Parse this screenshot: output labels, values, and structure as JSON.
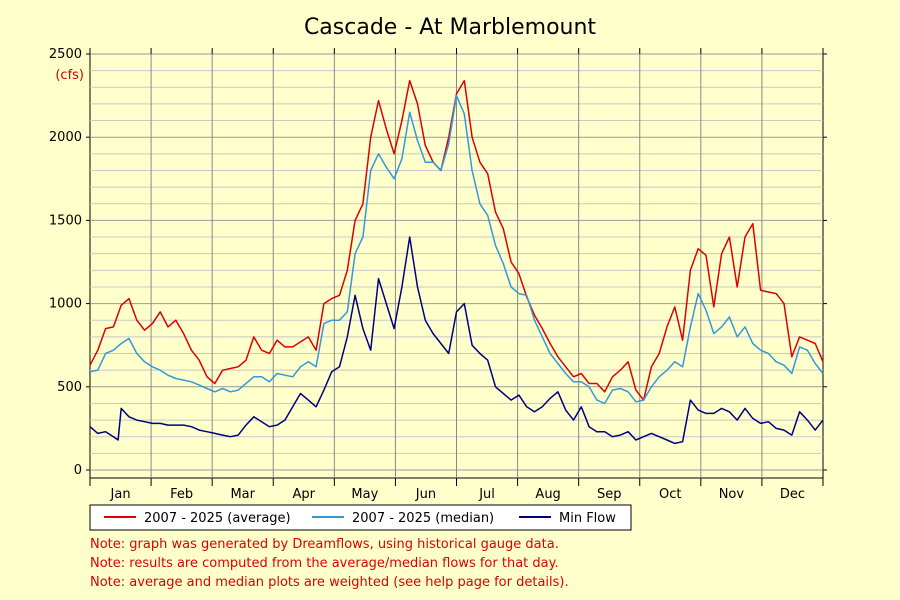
{
  "chart_data": {
    "type": "line",
    "title": "Cascade - At Marblemount",
    "y_unit": "(cfs)",
    "ylim": [
      0,
      2500
    ],
    "y_ticks": [
      0,
      500,
      1000,
      1500,
      2000,
      2500
    ],
    "x_ticks": [
      "Jan",
      "Feb",
      "Mar",
      "Apr",
      "May",
      "Jun",
      "Jul",
      "Aug",
      "Sep",
      "Oct",
      "Nov",
      "Dec"
    ],
    "xlim_days": [
      0,
      365
    ],
    "grid": true,
    "legend_placement": "bottom",
    "series": [
      {
        "name": "2007 - 2025 (average)",
        "color": "#dd0000",
        "points": [
          [
            0,
            630
          ],
          [
            5,
            720
          ],
          [
            10,
            850
          ],
          [
            15,
            860
          ],
          [
            20,
            990
          ],
          [
            25,
            1030
          ],
          [
            30,
            900
          ],
          [
            35,
            840
          ],
          [
            40,
            880
          ],
          [
            45,
            950
          ],
          [
            50,
            860
          ],
          [
            55,
            900
          ],
          [
            60,
            820
          ],
          [
            65,
            720
          ],
          [
            70,
            660
          ],
          [
            75,
            560
          ],
          [
            80,
            520
          ],
          [
            85,
            600
          ],
          [
            90,
            610
          ],
          [
            95,
            620
          ],
          [
            100,
            660
          ],
          [
            105,
            800
          ],
          [
            110,
            720
          ],
          [
            115,
            700
          ],
          [
            120,
            780
          ],
          [
            125,
            740
          ],
          [
            130,
            740
          ],
          [
            135,
            770
          ],
          [
            140,
            800
          ],
          [
            145,
            720
          ],
          [
            150,
            1000
          ],
          [
            155,
            1030
          ],
          [
            160,
            1050
          ],
          [
            165,
            1200
          ],
          [
            170,
            1500
          ],
          [
            175,
            1600
          ],
          [
            180,
            2000
          ],
          [
            185,
            2220
          ],
          [
            190,
            2050
          ],
          [
            195,
            1900
          ],
          [
            200,
            2100
          ],
          [
            205,
            2340
          ],
          [
            210,
            2200
          ],
          [
            215,
            1950
          ],
          [
            220,
            1850
          ],
          [
            225,
            1800
          ],
          [
            230,
            2000
          ],
          [
            235,
            2260
          ],
          [
            240,
            2340
          ],
          [
            245,
            2000
          ],
          [
            250,
            1850
          ],
          [
            255,
            1780
          ],
          [
            260,
            1550
          ],
          [
            265,
            1450
          ],
          [
            270,
            1250
          ],
          [
            275,
            1180
          ],
          [
            280,
            1040
          ],
          [
            285,
            930
          ],
          [
            290,
            850
          ],
          [
            295,
            760
          ],
          [
            300,
            680
          ],
          [
            305,
            620
          ],
          [
            310,
            560
          ],
          [
            315,
            580
          ],
          [
            320,
            520
          ],
          [
            325,
            520
          ],
          [
            330,
            470
          ],
          [
            335,
            560
          ],
          [
            340,
            600
          ],
          [
            345,
            650
          ],
          [
            350,
            480
          ],
          [
            355,
            420
          ],
          [
            360,
            620
          ],
          [
            365,
            700
          ],
          [
            370,
            860
          ],
          [
            375,
            980
          ],
          [
            380,
            780
          ],
          [
            385,
            1200
          ],
          [
            390,
            1330
          ],
          [
            395,
            1290
          ],
          [
            400,
            980
          ],
          [
            405,
            1300
          ],
          [
            410,
            1400
          ],
          [
            415,
            1100
          ],
          [
            420,
            1400
          ],
          [
            425,
            1480
          ],
          [
            430,
            1080
          ],
          [
            435,
            1070
          ],
          [
            440,
            1060
          ],
          [
            445,
            1000
          ],
          [
            450,
            680
          ],
          [
            455,
            800
          ],
          [
            460,
            780
          ],
          [
            465,
            760
          ],
          [
            470,
            650
          ]
        ]
      },
      {
        "name": "2007 - 2025 (median)",
        "color": "#3399dd",
        "points": [
          [
            0,
            590
          ],
          [
            5,
            600
          ],
          [
            10,
            700
          ],
          [
            15,
            720
          ],
          [
            20,
            760
          ],
          [
            25,
            790
          ],
          [
            30,
            700
          ],
          [
            35,
            650
          ],
          [
            40,
            620
          ],
          [
            45,
            600
          ],
          [
            50,
            570
          ],
          [
            55,
            550
          ],
          [
            60,
            540
          ],
          [
            65,
            530
          ],
          [
            70,
            510
          ],
          [
            75,
            490
          ],
          [
            80,
            470
          ],
          [
            85,
            490
          ],
          [
            90,
            470
          ],
          [
            95,
            480
          ],
          [
            100,
            520
          ],
          [
            105,
            560
          ],
          [
            110,
            560
          ],
          [
            115,
            530
          ],
          [
            120,
            580
          ],
          [
            125,
            570
          ],
          [
            130,
            560
          ],
          [
            135,
            620
          ],
          [
            140,
            650
          ],
          [
            145,
            620
          ],
          [
            150,
            880
          ],
          [
            155,
            900
          ],
          [
            160,
            900
          ],
          [
            165,
            950
          ],
          [
            170,
            1300
          ],
          [
            175,
            1400
          ],
          [
            180,
            1800
          ],
          [
            185,
            1900
          ],
          [
            190,
            1820
          ],
          [
            195,
            1750
          ],
          [
            200,
            1870
          ],
          [
            205,
            2150
          ],
          [
            210,
            1980
          ],
          [
            215,
            1850
          ],
          [
            220,
            1850
          ],
          [
            225,
            1800
          ],
          [
            230,
            1960
          ],
          [
            235,
            2250
          ],
          [
            240,
            2140
          ],
          [
            245,
            1800
          ],
          [
            250,
            1600
          ],
          [
            255,
            1530
          ],
          [
            260,
            1350
          ],
          [
            265,
            1240
          ],
          [
            270,
            1100
          ],
          [
            275,
            1060
          ],
          [
            280,
            1050
          ],
          [
            285,
            900
          ],
          [
            290,
            800
          ],
          [
            295,
            700
          ],
          [
            300,
            640
          ],
          [
            305,
            580
          ],
          [
            310,
            530
          ],
          [
            315,
            530
          ],
          [
            320,
            500
          ],
          [
            325,
            420
          ],
          [
            330,
            400
          ],
          [
            335,
            480
          ],
          [
            340,
            490
          ],
          [
            345,
            470
          ],
          [
            350,
            410
          ],
          [
            355,
            420
          ],
          [
            360,
            500
          ],
          [
            365,
            560
          ],
          [
            370,
            600
          ],
          [
            375,
            650
          ],
          [
            380,
            620
          ],
          [
            385,
            860
          ],
          [
            390,
            1060
          ],
          [
            395,
            960
          ],
          [
            400,
            820
          ],
          [
            405,
            860
          ],
          [
            410,
            920
          ],
          [
            415,
            800
          ],
          [
            420,
            860
          ],
          [
            425,
            760
          ],
          [
            430,
            720
          ],
          [
            435,
            700
          ],
          [
            440,
            650
          ],
          [
            445,
            630
          ],
          [
            450,
            580
          ],
          [
            455,
            740
          ],
          [
            460,
            720
          ],
          [
            465,
            640
          ],
          [
            470,
            580
          ]
        ]
      },
      {
        "name": "Min Flow",
        "color": "#000080",
        "points": [
          [
            0,
            260
          ],
          [
            5,
            220
          ],
          [
            10,
            230
          ],
          [
            15,
            200
          ],
          [
            18,
            180
          ],
          [
            20,
            370
          ],
          [
            25,
            320
          ],
          [
            30,
            300
          ],
          [
            35,
            290
          ],
          [
            40,
            280
          ],
          [
            45,
            280
          ],
          [
            50,
            270
          ],
          [
            55,
            270
          ],
          [
            60,
            270
          ],
          [
            65,
            260
          ],
          [
            70,
            240
          ],
          [
            75,
            230
          ],
          [
            80,
            220
          ],
          [
            85,
            210
          ],
          [
            90,
            200
          ],
          [
            95,
            210
          ],
          [
            100,
            270
          ],
          [
            105,
            320
          ],
          [
            110,
            290
          ],
          [
            115,
            260
          ],
          [
            120,
            270
          ],
          [
            125,
            300
          ],
          [
            130,
            380
          ],
          [
            135,
            460
          ],
          [
            140,
            420
          ],
          [
            145,
            380
          ],
          [
            150,
            480
          ],
          [
            155,
            590
          ],
          [
            160,
            620
          ],
          [
            165,
            800
          ],
          [
            170,
            1050
          ],
          [
            175,
            850
          ],
          [
            180,
            720
          ],
          [
            185,
            1150
          ],
          [
            190,
            1000
          ],
          [
            195,
            850
          ],
          [
            200,
            1100
          ],
          [
            205,
            1400
          ],
          [
            210,
            1100
          ],
          [
            215,
            900
          ],
          [
            220,
            820
          ],
          [
            225,
            760
          ],
          [
            230,
            700
          ],
          [
            235,
            950
          ],
          [
            240,
            1000
          ],
          [
            245,
            750
          ],
          [
            250,
            700
          ],
          [
            255,
            660
          ],
          [
            260,
            500
          ],
          [
            265,
            460
          ],
          [
            270,
            420
          ],
          [
            275,
            450
          ],
          [
            280,
            380
          ],
          [
            285,
            350
          ],
          [
            290,
            380
          ],
          [
            295,
            430
          ],
          [
            300,
            470
          ],
          [
            305,
            360
          ],
          [
            310,
            300
          ],
          [
            315,
            380
          ],
          [
            320,
            260
          ],
          [
            325,
            230
          ],
          [
            330,
            230
          ],
          [
            335,
            200
          ],
          [
            340,
            210
          ],
          [
            345,
            230
          ],
          [
            350,
            180
          ],
          [
            355,
            200
          ],
          [
            360,
            220
          ],
          [
            365,
            200
          ],
          [
            370,
            180
          ],
          [
            375,
            160
          ],
          [
            380,
            170
          ],
          [
            385,
            420
          ],
          [
            390,
            360
          ],
          [
            395,
            340
          ],
          [
            400,
            340
          ],
          [
            405,
            370
          ],
          [
            410,
            350
          ],
          [
            415,
            300
          ],
          [
            420,
            370
          ],
          [
            425,
            310
          ],
          [
            430,
            280
          ],
          [
            435,
            290
          ],
          [
            440,
            250
          ],
          [
            445,
            240
          ],
          [
            450,
            210
          ],
          [
            455,
            350
          ],
          [
            460,
            300
          ],
          [
            465,
            240
          ],
          [
            470,
            300
          ]
        ]
      }
    ]
  },
  "notes": [
    "Note: graph was generated by Dreamflows, using historical gauge data.",
    "Note: results are computed from the average/median flows for that day.",
    "Note: average and median plots are weighted (see help page for details)."
  ]
}
